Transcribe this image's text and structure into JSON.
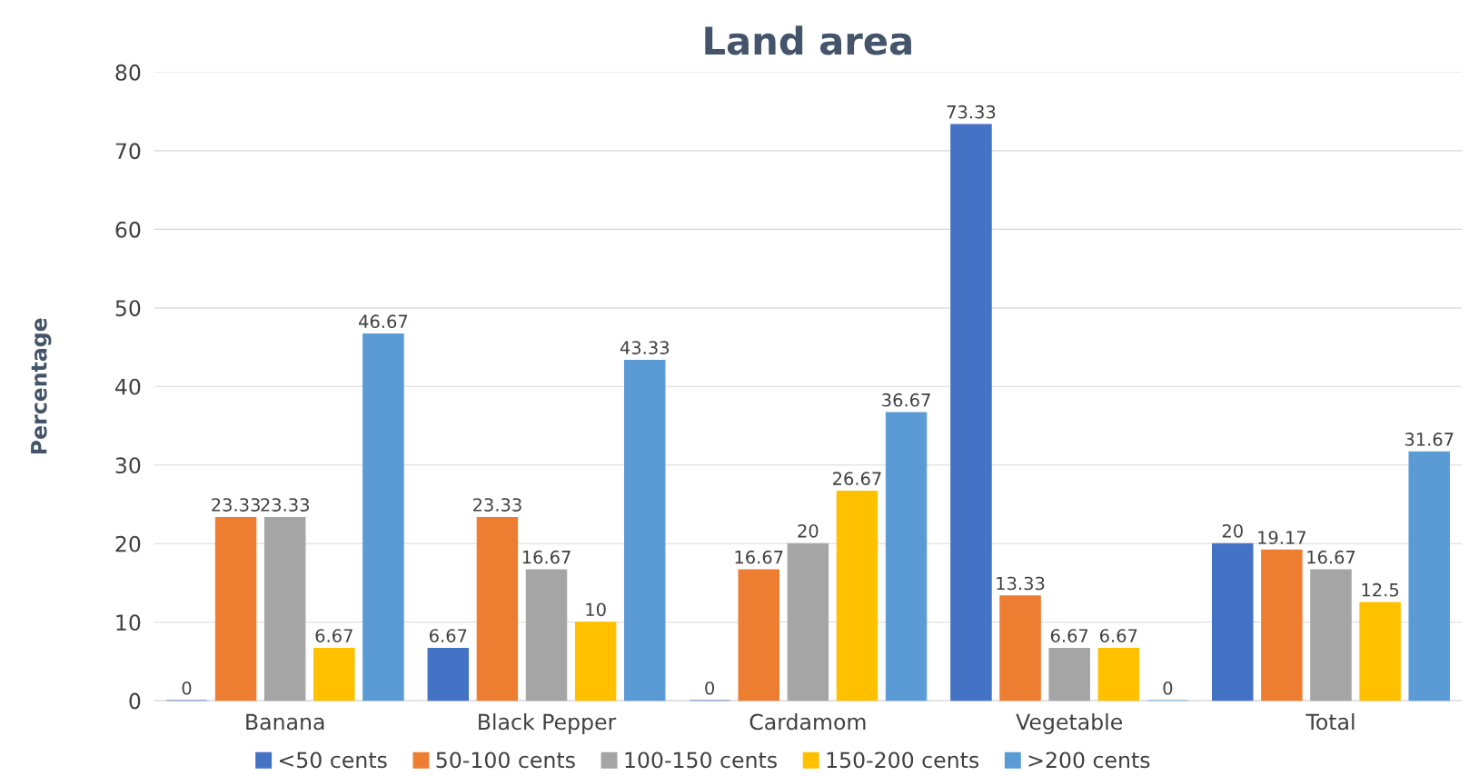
{
  "chart_data": {
    "type": "bar",
    "title": "Land area",
    "ylabel": "Percentage",
    "categories": [
      "Banana",
      "Black Pepper",
      "Cardamom",
      "Vegetable",
      "Total"
    ],
    "series": [
      {
        "name": "<50 cents",
        "color": "#4472c4",
        "values": [
          0,
          6.67,
          0,
          73.33,
          20
        ]
      },
      {
        "name": "50-100 cents",
        "color": "#ed7d31",
        "values": [
          23.33,
          23.33,
          16.67,
          13.33,
          19.17
        ]
      },
      {
        "name": "100-150 cents",
        "color": "#a5a5a5",
        "values": [
          23.33,
          16.67,
          20,
          6.67,
          16.67
        ]
      },
      {
        "name": "150-200 cents",
        "color": "#ffc000",
        "values": [
          6.67,
          10,
          26.67,
          6.67,
          12.5
        ]
      },
      {
        "name": ">200 cents",
        "color": "#5b9bd5",
        "values": [
          46.67,
          43.33,
          36.67,
          0,
          31.67
        ]
      }
    ],
    "ylim": [
      0,
      80
    ],
    "yticks": [
      0,
      10,
      20,
      30,
      40,
      50,
      60,
      70,
      80
    ],
    "grid": "y",
    "legend": "bottom",
    "data_labels": true
  }
}
